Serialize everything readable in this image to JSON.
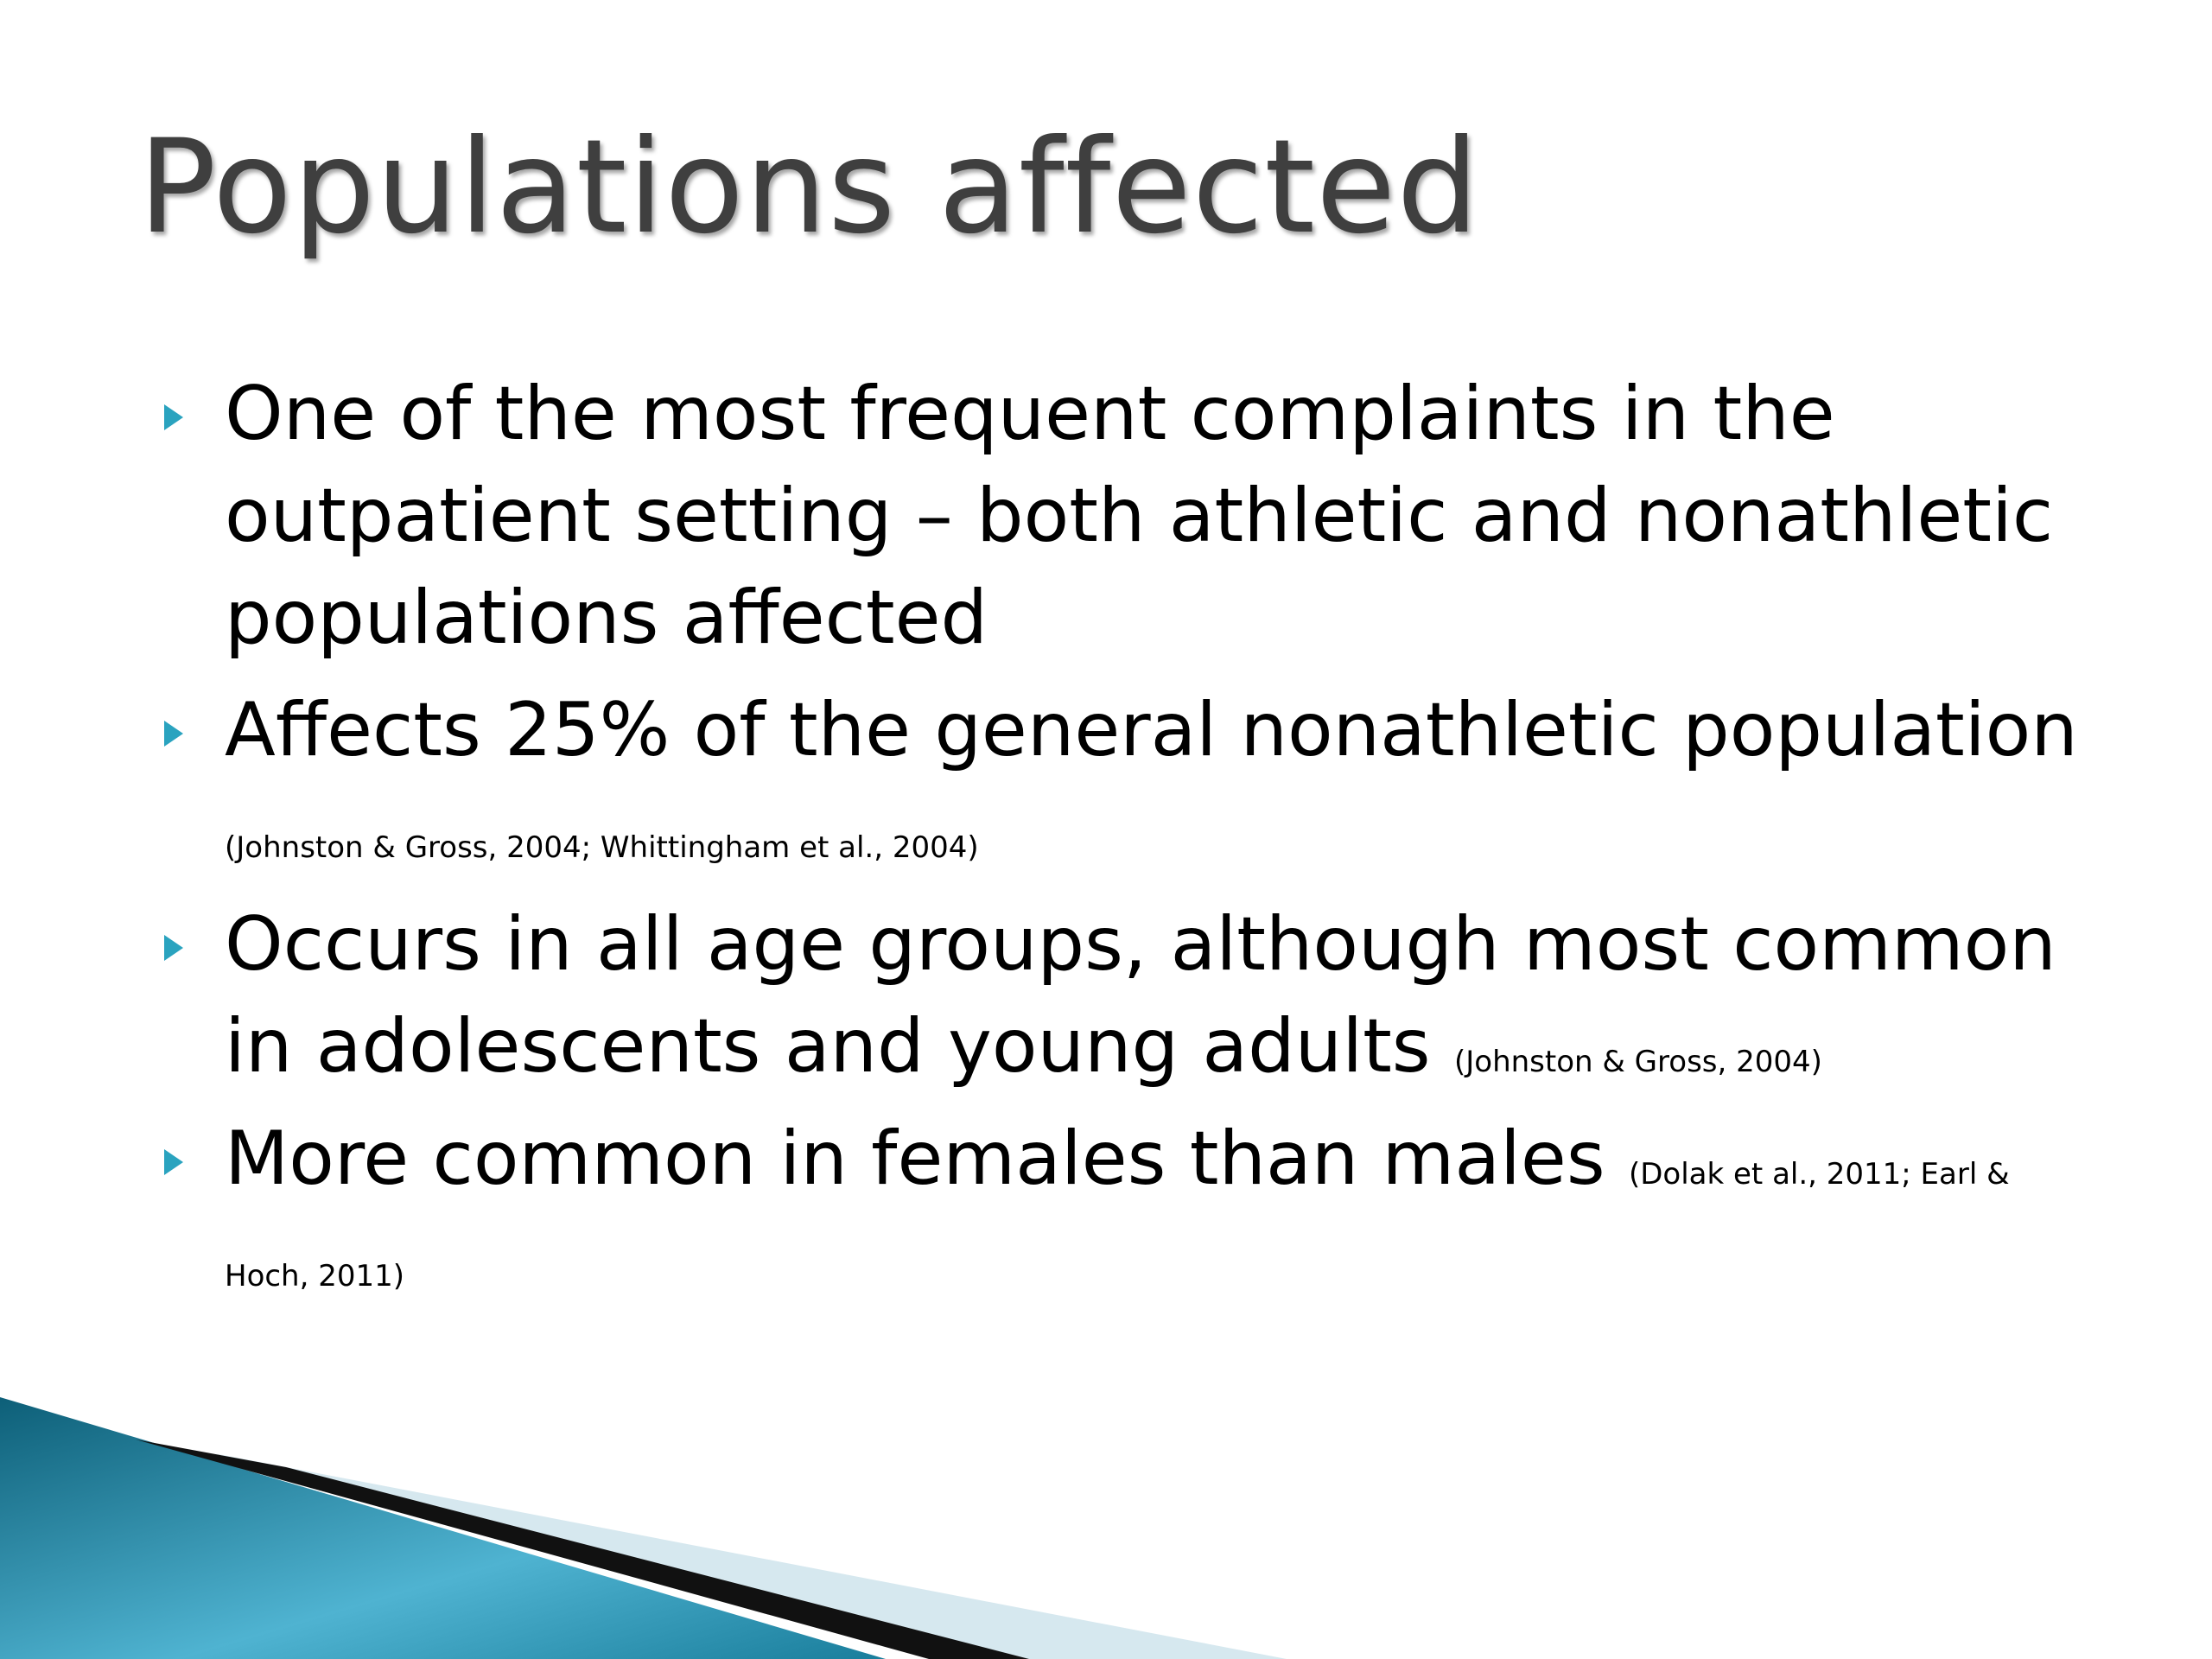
{
  "title": "Populations affected",
  "bullets": [
    {
      "text": "One of the most frequent complaints in the outpatient setting – both athletic and nonathletic populations affected"
    },
    {
      "text": "Affects 25% of the general nonathletic population",
      "citation": "(Johnston & Gross, 2004; Whittingham et al., 2004)"
    },
    {
      "text": "Occurs in all age groups, although most common in adolescents and young adults",
      "citation": "(Johnston & Gross, 2004)"
    },
    {
      "text": "More common in females than males",
      "citation": "(Dolak et al., 2011; Earl & Hoch, 2011)"
    }
  ]
}
